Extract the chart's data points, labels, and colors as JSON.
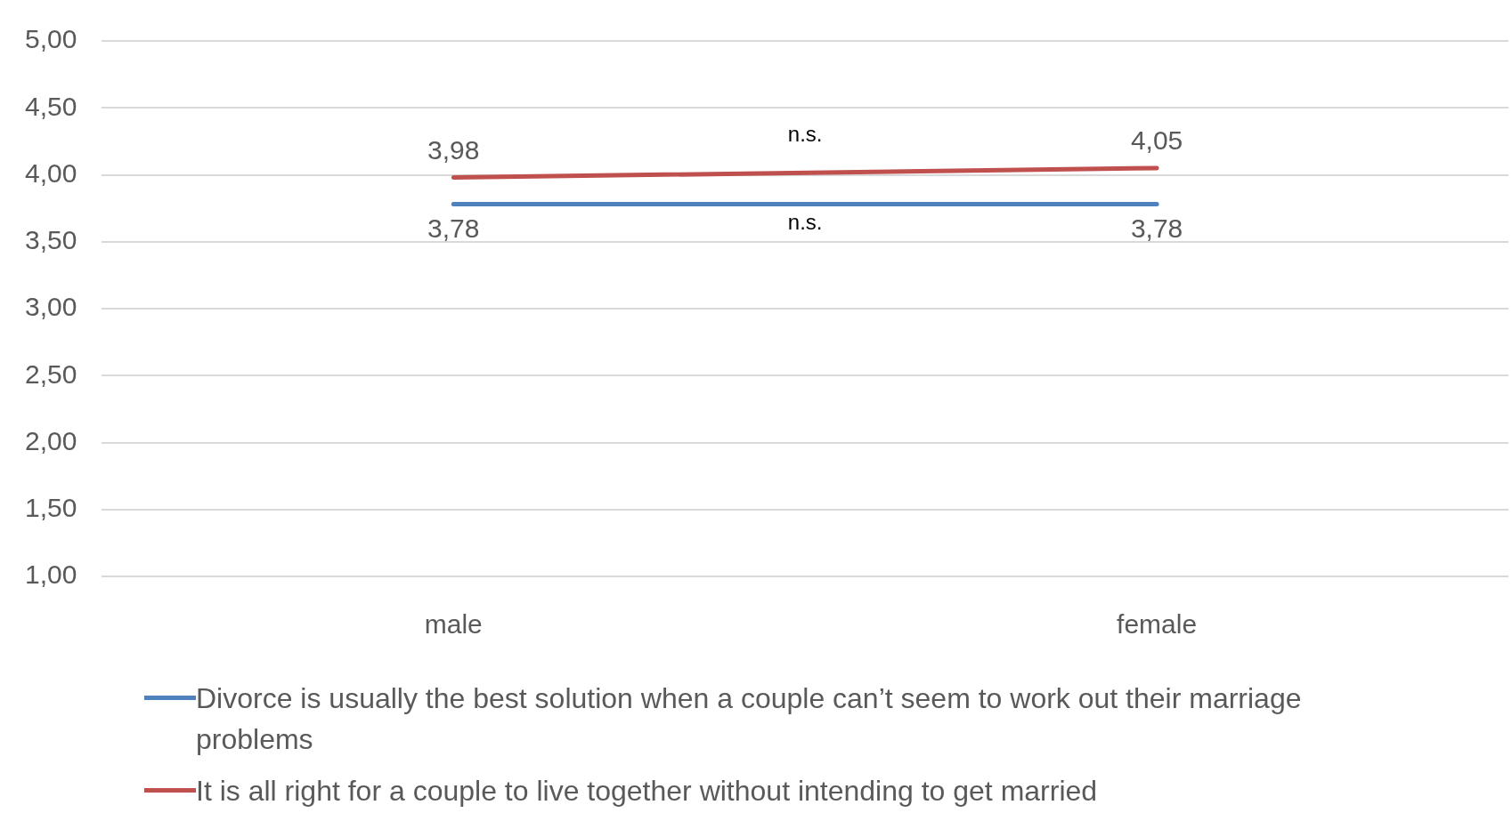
{
  "chart_data": {
    "type": "line",
    "categories": [
      "male",
      "female"
    ],
    "series": [
      {
        "name": "Divorce is usually the best solution when a couple can’t seem to work out their marriage problems",
        "color": "#4f81bd",
        "values": [
          3.78,
          3.78
        ],
        "value_labels": [
          "3,78",
          "3,78"
        ]
      },
      {
        "name": "It is all right for a couple to live together without intending to get married",
        "color": "#c0504d",
        "values": [
          3.98,
          4.05
        ],
        "value_labels": [
          "3,98",
          "4,05"
        ]
      }
    ],
    "ylim": [
      1,
      5
    ],
    "yticks": [
      {
        "value": 1,
        "label": "1,00"
      },
      {
        "value": 1.5,
        "label": "1,50"
      },
      {
        "value": 2,
        "label": "2,00"
      },
      {
        "value": 2.5,
        "label": "2,50"
      },
      {
        "value": 3,
        "label": "3,00"
      },
      {
        "value": 3.5,
        "label": "3,50"
      },
      {
        "value": 4,
        "label": "4,00"
      },
      {
        "value": 4.5,
        "label": "4,50"
      },
      {
        "value": 5,
        "label": "5,00"
      }
    ],
    "annotations": [
      "n.s.",
      "n.s."
    ],
    "grid": "y",
    "legend": "bottom",
    "marker": "none",
    "line_style": "solid"
  }
}
